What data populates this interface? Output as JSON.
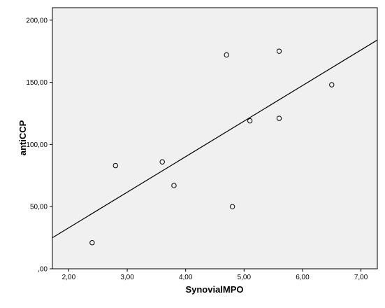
{
  "chart_data": {
    "type": "scatter",
    "xlabel": "SynovialMPO",
    "ylabel": "antiCCP",
    "xlim": [
      1.72,
      7.28
    ],
    "ylim": [
      0,
      210
    ],
    "x_ticks": [
      2,
      3,
      4,
      5,
      6,
      7
    ],
    "x_tick_labels": [
      "2,00",
      "3,00",
      "4,00",
      "5,00",
      "6,00",
      "7,00"
    ],
    "y_ticks": [
      0,
      50,
      100,
      150,
      200
    ],
    "y_tick_labels": [
      ",00",
      "50,00",
      "100,00",
      "150,00",
      "200,00"
    ],
    "points": [
      {
        "x": 2.4,
        "y": 21
      },
      {
        "x": 2.8,
        "y": 83
      },
      {
        "x": 3.6,
        "y": 86
      },
      {
        "x": 3.8,
        "y": 67
      },
      {
        "x": 4.7,
        "y": 172
      },
      {
        "x": 4.8,
        "y": 50
      },
      {
        "x": 5.1,
        "y": 119
      },
      {
        "x": 5.6,
        "y": 175
      },
      {
        "x": 5.6,
        "y": 121
      },
      {
        "x": 6.5,
        "y": 148
      }
    ],
    "fit_line": {
      "x": [
        1.72,
        7.28
      ],
      "y": [
        25,
        184
      ]
    },
    "grid": false,
    "legend": "none",
    "colors": {
      "plot_background": "#f0f0f0",
      "frame": "#000000",
      "marker": "#000000",
      "line": "#000000"
    }
  }
}
